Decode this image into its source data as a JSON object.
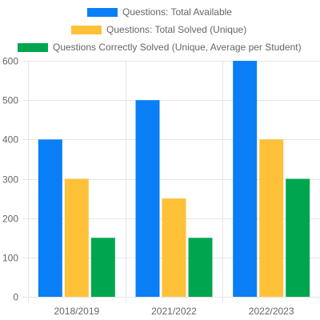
{
  "chart_data": {
    "type": "bar",
    "categories": [
      "2018/2019",
      "2021/2022",
      "2022/2023"
    ],
    "series": [
      {
        "name": "Questions: Total Available",
        "values": [
          400,
          500,
          600
        ],
        "color": "#0a7ff5"
      },
      {
        "name": "Questions: Total Solved (Unique)",
        "values": [
          300,
          250,
          400
        ],
        "color": "#ffc137"
      },
      {
        "name": "Questions Correctly Solved (Unique, Average per Student)",
        "values": [
          150,
          150,
          300
        ],
        "color": "#00a64f"
      }
    ],
    "ylim": [
      0,
      600
    ],
    "yticks": [
      0,
      100,
      200,
      300,
      400,
      500,
      600
    ],
    "grid": true,
    "legend_position": "top",
    "title": "",
    "xlabel": "",
    "ylabel": ""
  }
}
